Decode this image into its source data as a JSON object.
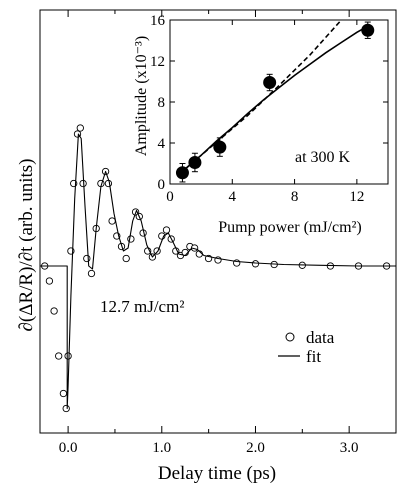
{
  "chart_data": [
    {
      "type": "scatter",
      "xlabel": "Delay time (ps)",
      "ylabel": "∂(ΔR/R)/∂t (arb. units)",
      "xlim": [
        -0.3,
        3.5
      ],
      "ylim": [
        -1.0,
        1.0
      ],
      "xticks": [
        "0.0",
        "1.0",
        "2.0",
        "3.0"
      ],
      "yticks_labeled": false,
      "annotation": "12.7 mJ/cm²",
      "legend": {
        "placement": "bottom-right",
        "entries": [
          "data",
          "fit"
        ]
      },
      "series": [
        {
          "name": "data",
          "marker": "open-circle",
          "x": [
            -0.25,
            -0.2,
            -0.15,
            -0.1,
            -0.05,
            -0.02,
            0.0,
            0.03,
            0.06,
            0.1,
            0.13,
            0.16,
            0.2,
            0.25,
            0.3,
            0.35,
            0.4,
            0.43,
            0.47,
            0.52,
            0.57,
            0.62,
            0.67,
            0.72,
            0.76,
            0.8,
            0.85,
            0.9,
            0.95,
            1.0,
            1.05,
            1.1,
            1.15,
            1.2,
            1.25,
            1.3,
            1.35,
            1.4,
            1.5,
            1.6,
            1.8,
            2.0,
            2.2,
            2.5,
            2.8,
            3.1,
            3.4
          ],
          "y": [
            0.0,
            -0.1,
            -0.3,
            -0.6,
            -0.85,
            -0.95,
            -0.6,
            0.1,
            0.55,
            0.88,
            0.92,
            0.55,
            0.05,
            -0.05,
            0.25,
            0.55,
            0.63,
            0.55,
            0.3,
            0.2,
            0.13,
            0.05,
            0.18,
            0.36,
            0.33,
            0.22,
            0.1,
            0.06,
            0.1,
            0.2,
            0.24,
            0.18,
            0.1,
            0.07,
            0.09,
            0.13,
            0.12,
            0.08,
            0.05,
            0.04,
            0.02,
            0.015,
            0.01,
            0.005,
            0.0,
            0.0,
            0.0
          ]
        },
        {
          "name": "fit",
          "style": "solid-line",
          "x": [
            -0.3,
            -0.01,
            -0.01,
            0.0,
            0.03,
            0.07,
            0.11,
            0.14,
            0.18,
            0.22,
            0.26,
            0.3,
            0.35,
            0.4,
            0.44,
            0.49,
            0.54,
            0.59,
            0.64,
            0.69,
            0.73,
            0.78,
            0.84,
            0.9,
            0.96,
            1.02,
            1.07,
            1.12,
            1.18,
            1.25,
            1.32,
            1.38,
            1.45,
            1.6,
            1.8,
            2.0,
            2.3,
            2.7,
            3.1,
            3.5
          ],
          "y": [
            0.0,
            0.0,
            -0.95,
            -0.8,
            -0.2,
            0.45,
            0.88,
            0.85,
            0.4,
            0.0,
            -0.02,
            0.25,
            0.53,
            0.63,
            0.56,
            0.35,
            0.2,
            0.1,
            0.12,
            0.3,
            0.37,
            0.3,
            0.14,
            0.06,
            0.1,
            0.2,
            0.22,
            0.16,
            0.08,
            0.07,
            0.12,
            0.11,
            0.07,
            0.05,
            0.03,
            0.02,
            0.01,
            0.005,
            0.0,
            0.0
          ]
        }
      ]
    },
    {
      "type": "scatter",
      "xlabel": "Pump power (mJ/cm²)",
      "ylabel": "Amplitude (x10⁻³)",
      "xlim": [
        0,
        14
      ],
      "ylim": [
        0,
        16
      ],
      "xticks": [
        0,
        4,
        8,
        12
      ],
      "yticks": [
        0,
        4,
        8,
        12,
        16
      ],
      "annotation": "at 300 K",
      "series": [
        {
          "marker": "filled-circle",
          "x": [
            0.8,
            1.6,
            3.2,
            6.4,
            12.7
          ],
          "y": [
            1.1,
            2.1,
            3.6,
            9.9,
            15.0
          ],
          "yerr": [
            0.9,
            0.9,
            0.9,
            0.8,
            0.8
          ]
        },
        {
          "style": "solid-line",
          "x": [
            1.0,
            2.0,
            3.0,
            4.0,
            5.0,
            6.0,
            7.0,
            8.0,
            9.0,
            10.0,
            11.0,
            12.0,
            12.7
          ],
          "y": [
            1.5,
            2.8,
            4.2,
            5.5,
            6.9,
            8.2,
            9.4,
            10.6,
            11.7,
            12.8,
            13.8,
            14.8,
            15.4
          ]
        },
        {
          "style": "dashed-line",
          "x": [
            1.0,
            3.0,
            5.0,
            7.0,
            9.0,
            11.0
          ],
          "y": [
            1.5,
            4.1,
            6.7,
            9.6,
            12.6,
            16.0
          ]
        }
      ]
    }
  ]
}
